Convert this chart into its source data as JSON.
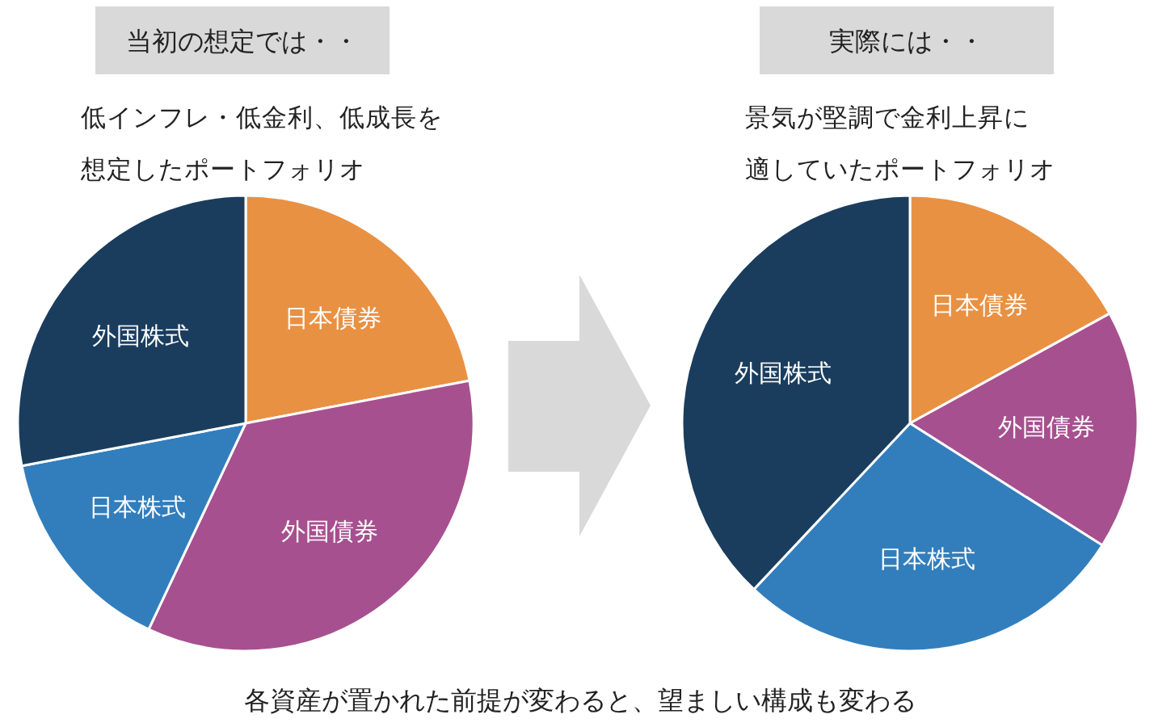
{
  "chart_data": [
    {
      "type": "pie",
      "title": "当初の想定では・・",
      "subtitle": "低インフレ・低金利、低成長を想定したポートフォリオ",
      "categories": [
        "日本債券",
        "外国債券",
        "日本株式",
        "外国株式"
      ],
      "values": [
        22,
        35,
        15,
        28
      ],
      "colors": [
        "#e99143",
        "#a7508f",
        "#327ebd",
        "#1a3d5e"
      ],
      "annotations": [
        "各資産が置かれた前提が変わると、望ましい構成も変わる"
      ]
    },
    {
      "type": "pie",
      "title": "実際には・・",
      "subtitle": "景気が堅調で金利上昇に適していたポートフォリオ",
      "categories": [
        "日本債券",
        "外国債券",
        "日本株式",
        "外国株式"
      ],
      "values": [
        17,
        17,
        28,
        38
      ],
      "colors": [
        "#e99143",
        "#a7508f",
        "#327ebd",
        "#1a3d5e"
      ]
    }
  ]
}
